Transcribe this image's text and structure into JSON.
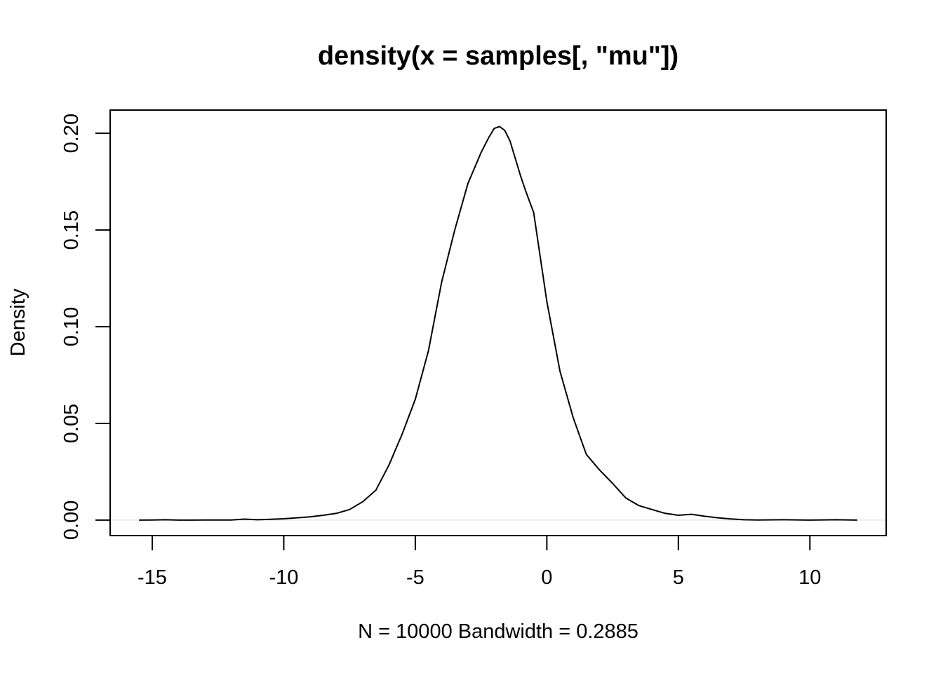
{
  "chart_data": {
    "type": "line",
    "title": "density(x = samples[, \"mu\"])",
    "xlabel": "N = 10000   Bandwidth = 0.2885",
    "ylabel": "Density",
    "xlim": [
      -16.6,
      12.9
    ],
    "ylim": [
      -0.008,
      0.212
    ],
    "xticks": [
      -15,
      -10,
      -5,
      0,
      5,
      10
    ],
    "xtick_labels": [
      "-15",
      "-10",
      "-5",
      "0",
      "5",
      "10"
    ],
    "yticks": [
      0.0,
      0.05,
      0.1,
      0.15,
      0.2
    ],
    "ytick_labels": [
      "0.00",
      "0.05",
      "0.10",
      "0.15",
      "0.20"
    ],
    "grid": false,
    "legend": "none",
    "baseline": 0,
    "colors": {
      "line": "#000000",
      "baseline": "#d9d9d9",
      "box": "#000000"
    },
    "series": [
      {
        "x": [
          -15.5,
          -15.0,
          -14.5,
          -14.0,
          -13.5,
          -13.0,
          -12.5,
          -12.0,
          -11.5,
          -11.0,
          -10.5,
          -10.0,
          -9.5,
          -9.0,
          -8.5,
          -8.0,
          -7.5,
          -7.0,
          -6.5,
          -6.0,
          -5.5,
          -5.0,
          -4.5,
          -4.0,
          -3.5,
          -3.0,
          -2.5,
          -2.2,
          -2.0,
          -1.8,
          -1.6,
          -1.4,
          -1.2,
          -1.0,
          -0.8,
          -0.5,
          0.0,
          0.5,
          1.0,
          1.5,
          2.0,
          2.5,
          3.0,
          3.5,
          4.0,
          4.5,
          5.0,
          5.5,
          6.0,
          6.5,
          7.0,
          7.5,
          8.0,
          9.0,
          10.0,
          11.0,
          11.8
        ],
        "y": [
          0.0,
          0.0001,
          0.0002,
          0.0,
          0.0,
          0.0001,
          0.0001,
          0.0001,
          0.0005,
          0.0002,
          0.0004,
          0.0007,
          0.0012,
          0.0017,
          0.0025,
          0.0035,
          0.0055,
          0.0095,
          0.0155,
          0.0285,
          0.0445,
          0.0625,
          0.0875,
          0.123,
          0.15,
          0.174,
          0.19,
          0.198,
          0.2025,
          0.2035,
          0.2015,
          0.196,
          0.187,
          0.178,
          0.17,
          0.159,
          0.113,
          0.077,
          0.053,
          0.034,
          0.026,
          0.019,
          0.0115,
          0.0075,
          0.0055,
          0.0035,
          0.0025,
          0.003,
          0.002,
          0.0012,
          0.0006,
          0.0002,
          0.0001,
          0.0002,
          0.0,
          0.0002,
          0.0
        ]
      }
    ]
  }
}
